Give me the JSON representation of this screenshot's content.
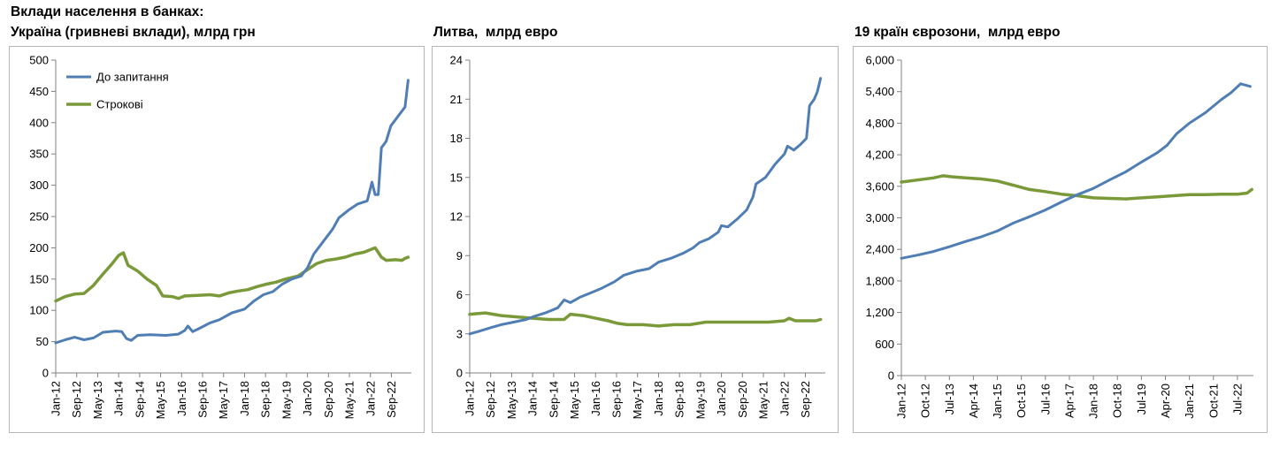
{
  "header": {
    "title": "Вклади населення в банках:"
  },
  "colors": {
    "demand": "#4f7eb4",
    "term": "#7a9a3a",
    "axis": "#808080"
  },
  "chart_data": [
    {
      "type": "line",
      "title": "Україна (гривневі вклади), млрд грн",
      "ylim": [
        0,
        500
      ],
      "yticks": [
        "0",
        "50",
        "100",
        "150",
        "200",
        "250",
        "300",
        "350",
        "400",
        "450",
        "500"
      ],
      "xlabels": [
        "Jan-12",
        "Sep-12",
        "May-13",
        "Jan-14",
        "Sep-14",
        "May-15",
        "Jan-16",
        "Sep-16",
        "May-17",
        "Jan-18",
        "Sep-18",
        "May-19",
        "Jan-20",
        "Sep-20",
        "May-21",
        "Jan-22",
        "Sep-22"
      ],
      "legend": {
        "position": "top-left"
      },
      "series": [
        {
          "name": "До запитання",
          "points": [
            [
              2012.0,
              48
            ],
            [
              2012.3,
              53
            ],
            [
              2012.6,
              57
            ],
            [
              2012.9,
              53
            ],
            [
              2013.2,
              56
            ],
            [
              2013.5,
              65
            ],
            [
              2013.9,
              67
            ],
            [
              2014.1,
              66
            ],
            [
              2014.25,
              55
            ],
            [
              2014.4,
              52
            ],
            [
              2014.6,
              60
            ],
            [
              2015.0,
              61
            ],
            [
              2015.5,
              60
            ],
            [
              2015.9,
              62
            ],
            [
              2016.1,
              68
            ],
            [
              2016.2,
              75
            ],
            [
              2016.35,
              66
            ],
            [
              2016.6,
              72
            ],
            [
              2016.9,
              80
            ],
            [
              2017.2,
              85
            ],
            [
              2017.6,
              96
            ],
            [
              2018.0,
              102
            ],
            [
              2018.3,
              115
            ],
            [
              2018.6,
              125
            ],
            [
              2018.9,
              130
            ],
            [
              2019.2,
              142
            ],
            [
              2019.5,
              150
            ],
            [
              2019.8,
              155
            ],
            [
              2020.0,
              168
            ],
            [
              2020.2,
              190
            ],
            [
              2020.5,
              210
            ],
            [
              2020.8,
              230
            ],
            [
              2021.0,
              248
            ],
            [
              2021.3,
              260
            ],
            [
              2021.6,
              270
            ],
            [
              2021.9,
              275
            ],
            [
              2022.05,
              305
            ],
            [
              2022.15,
              285
            ],
            [
              2022.25,
              285
            ],
            [
              2022.35,
              360
            ],
            [
              2022.5,
              370
            ],
            [
              2022.65,
              395
            ],
            [
              2022.8,
              405
            ],
            [
              2022.95,
              415
            ],
            [
              2023.1,
              425
            ],
            [
              2023.2,
              468
            ]
          ]
        },
        {
          "name": "Строкові",
          "points": [
            [
              2012.0,
              115
            ],
            [
              2012.3,
              122
            ],
            [
              2012.6,
              126
            ],
            [
              2012.9,
              127
            ],
            [
              2013.2,
              140
            ],
            [
              2013.5,
              158
            ],
            [
              2013.8,
              175
            ],
            [
              2014.0,
              188
            ],
            [
              2014.15,
              192
            ],
            [
              2014.3,
              172
            ],
            [
              2014.6,
              163
            ],
            [
              2014.9,
              150
            ],
            [
              2015.2,
              140
            ],
            [
              2015.4,
              123
            ],
            [
              2015.7,
              122
            ],
            [
              2015.9,
              119
            ],
            [
              2016.1,
              123
            ],
            [
              2016.5,
              124
            ],
            [
              2016.9,
              125
            ],
            [
              2017.2,
              123
            ],
            [
              2017.5,
              128
            ],
            [
              2017.8,
              131
            ],
            [
              2018.1,
              133
            ],
            [
              2018.4,
              138
            ],
            [
              2018.7,
              142
            ],
            [
              2019.0,
              145
            ],
            [
              2019.3,
              150
            ],
            [
              2019.7,
              155
            ],
            [
              2020.0,
              165
            ],
            [
              2020.3,
              175
            ],
            [
              2020.6,
              180
            ],
            [
              2020.9,
              182
            ],
            [
              2021.2,
              185
            ],
            [
              2021.5,
              190
            ],
            [
              2021.8,
              193
            ],
            [
              2022.0,
              197
            ],
            [
              2022.15,
              200
            ],
            [
              2022.35,
              185
            ],
            [
              2022.5,
              180
            ],
            [
              2022.8,
              181
            ],
            [
              2023.0,
              180
            ],
            [
              2023.1,
              183
            ],
            [
              2023.2,
              185
            ]
          ]
        }
      ]
    },
    {
      "type": "line",
      "title": "Литва,  млрд евро",
      "ylim": [
        0,
        24
      ],
      "yticks": [
        "0",
        "3",
        "6",
        "9",
        "12",
        "15",
        "18",
        "21",
        "24"
      ],
      "xlabels": [
        "Jan-12",
        "Sep-12",
        "May-13",
        "Jan-14",
        "Sep-14",
        "May-15",
        "Jan-16",
        "Sep-16",
        "May-17",
        "Jan-18",
        "Sep-18",
        "May-19",
        "Jan-20",
        "Sep-20",
        "May-21",
        "Jan-22",
        "Sep-22"
      ],
      "series": [
        {
          "name": "До запитання",
          "points": [
            [
              2012.0,
              3.0
            ],
            [
              2012.3,
              3.2
            ],
            [
              2012.7,
              3.5
            ],
            [
              2013.0,
              3.7
            ],
            [
              2013.4,
              3.9
            ],
            [
              2013.8,
              4.1
            ],
            [
              2014.0,
              4.3
            ],
            [
              2014.4,
              4.6
            ],
            [
              2014.8,
              5.0
            ],
            [
              2015.0,
              5.6
            ],
            [
              2015.2,
              5.4
            ],
            [
              2015.5,
              5.8
            ],
            [
              2015.9,
              6.2
            ],
            [
              2016.2,
              6.5
            ],
            [
              2016.6,
              7.0
            ],
            [
              2016.9,
              7.5
            ],
            [
              2017.3,
              7.8
            ],
            [
              2017.7,
              8.0
            ],
            [
              2018.0,
              8.5
            ],
            [
              2018.4,
              8.8
            ],
            [
              2018.8,
              9.2
            ],
            [
              2019.1,
              9.6
            ],
            [
              2019.3,
              10.0
            ],
            [
              2019.6,
              10.3
            ],
            [
              2019.9,
              10.8
            ],
            [
              2020.0,
              11.3
            ],
            [
              2020.2,
              11.2
            ],
            [
              2020.5,
              11.8
            ],
            [
              2020.8,
              12.5
            ],
            [
              2021.0,
              13.5
            ],
            [
              2021.1,
              14.5
            ],
            [
              2021.4,
              15.0
            ],
            [
              2021.7,
              16.0
            ],
            [
              2022.0,
              16.8
            ],
            [
              2022.1,
              17.4
            ],
            [
              2022.3,
              17.1
            ],
            [
              2022.5,
              17.5
            ],
            [
              2022.7,
              18.0
            ],
            [
              2022.8,
              20.5
            ],
            [
              2022.95,
              21.0
            ],
            [
              2023.05,
              21.6
            ],
            [
              2023.15,
              22.6
            ]
          ]
        },
        {
          "name": "Строкові",
          "points": [
            [
              2012.0,
              4.5
            ],
            [
              2012.5,
              4.6
            ],
            [
              2013.0,
              4.4
            ],
            [
              2013.5,
              4.3
            ],
            [
              2014.0,
              4.2
            ],
            [
              2014.5,
              4.1
            ],
            [
              2015.0,
              4.1
            ],
            [
              2015.2,
              4.5
            ],
            [
              2015.6,
              4.4
            ],
            [
              2016.0,
              4.2
            ],
            [
              2016.4,
              4.0
            ],
            [
              2016.7,
              3.8
            ],
            [
              2017.0,
              3.7
            ],
            [
              2017.5,
              3.7
            ],
            [
              2018.0,
              3.6
            ],
            [
              2018.5,
              3.7
            ],
            [
              2019.0,
              3.7
            ],
            [
              2019.5,
              3.9
            ],
            [
              2020.0,
              3.9
            ],
            [
              2020.5,
              3.9
            ],
            [
              2021.0,
              3.9
            ],
            [
              2021.5,
              3.9
            ],
            [
              2022.0,
              4.0
            ],
            [
              2022.15,
              4.2
            ],
            [
              2022.35,
              4.0
            ],
            [
              2022.7,
              4.0
            ],
            [
              2023.0,
              4.0
            ],
            [
              2023.15,
              4.1
            ]
          ]
        }
      ]
    },
    {
      "type": "line",
      "title": "19 країн єврозони,  млрд евро",
      "ylim": [
        0,
        6000
      ],
      "yticks": [
        "0",
        "600",
        "1,200",
        "1,800",
        "2,400",
        "3,000",
        "3,600",
        "4,200",
        "4,800",
        "5,400",
        "6,000"
      ],
      "xlabels": [
        "Jan-12",
        "Oct-12",
        "Jul-13",
        "Apr-14",
        "Jan-15",
        "Oct-15",
        "Jul-16",
        "Apr-17",
        "Jan-18",
        "Oct-18",
        "Jul-19",
        "Apr-20",
        "Jan-21",
        "Oct-21",
        "Jul-22"
      ],
      "series": [
        {
          "name": "До запитання",
          "points": [
            [
              2012.0,
              2230
            ],
            [
              2012.5,
              2290
            ],
            [
              2013.0,
              2360
            ],
            [
              2013.5,
              2450
            ],
            [
              2014.0,
              2550
            ],
            [
              2014.5,
              2640
            ],
            [
              2015.0,
              2750
            ],
            [
              2015.5,
              2900
            ],
            [
              2016.0,
              3020
            ],
            [
              2016.5,
              3150
            ],
            [
              2017.0,
              3300
            ],
            [
              2017.5,
              3440
            ],
            [
              2018.0,
              3560
            ],
            [
              2018.5,
              3720
            ],
            [
              2019.0,
              3870
            ],
            [
              2019.5,
              4060
            ],
            [
              2020.0,
              4240
            ],
            [
              2020.3,
              4380
            ],
            [
              2020.6,
              4600
            ],
            [
              2021.0,
              4800
            ],
            [
              2021.5,
              5000
            ],
            [
              2022.0,
              5250
            ],
            [
              2022.3,
              5380
            ],
            [
              2022.6,
              5550
            ],
            [
              2022.9,
              5500
            ]
          ]
        },
        {
          "name": "Строкові",
          "points": [
            [
              2012.0,
              3680
            ],
            [
              2012.5,
              3720
            ],
            [
              2013.0,
              3760
            ],
            [
              2013.3,
              3800
            ],
            [
              2013.6,
              3780
            ],
            [
              2014.0,
              3760
            ],
            [
              2014.5,
              3740
            ],
            [
              2015.0,
              3700
            ],
            [
              2015.5,
              3620
            ],
            [
              2016.0,
              3540
            ],
            [
              2016.5,
              3500
            ],
            [
              2017.0,
              3450
            ],
            [
              2017.5,
              3420
            ],
            [
              2018.0,
              3380
            ],
            [
              2018.5,
              3370
            ],
            [
              2019.0,
              3360
            ],
            [
              2019.5,
              3380
            ],
            [
              2020.0,
              3400
            ],
            [
              2020.5,
              3420
            ],
            [
              2021.0,
              3440
            ],
            [
              2021.5,
              3440
            ],
            [
              2022.0,
              3450
            ],
            [
              2022.5,
              3450
            ],
            [
              2022.8,
              3470
            ],
            [
              2022.95,
              3540
            ]
          ]
        }
      ]
    }
  ]
}
